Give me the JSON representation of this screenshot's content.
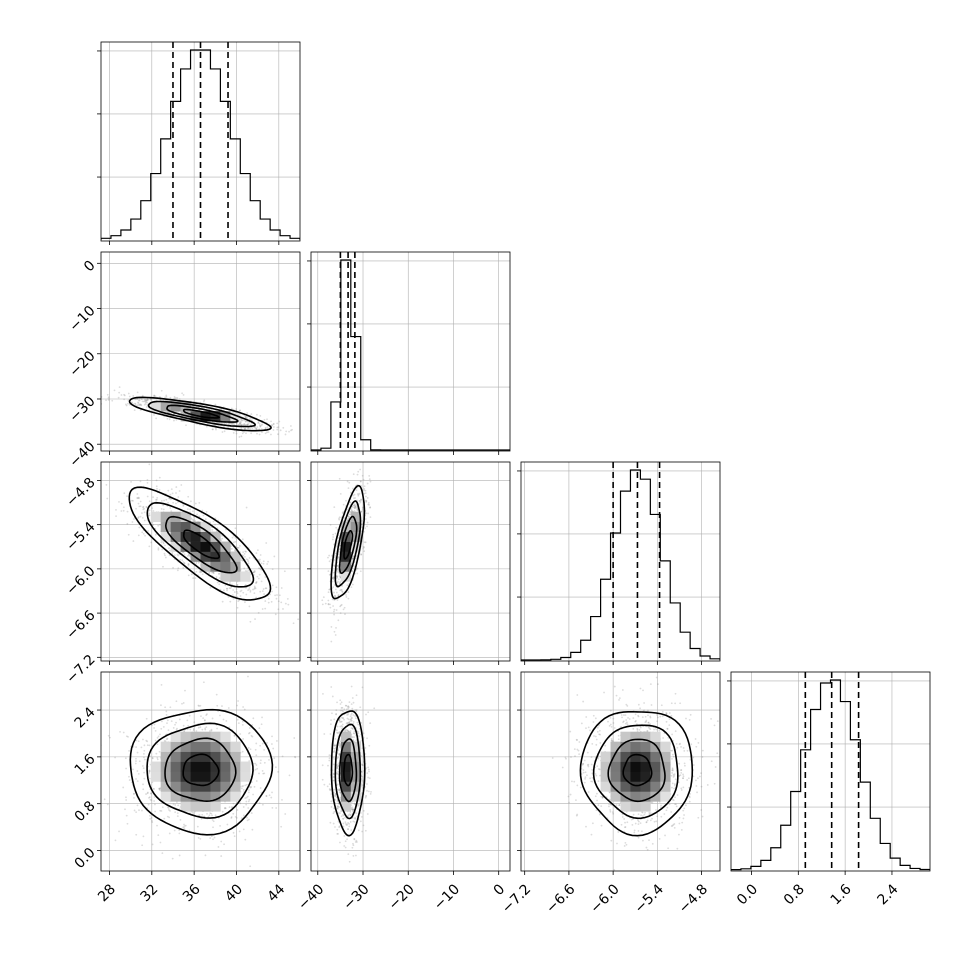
{
  "chart_data": {
    "type": "corner",
    "grid": true,
    "colors": {
      "line": "#000000",
      "grid": "#b0b0b0",
      "points": "#808080",
      "background": "#ffffff"
    },
    "parameters": [
      {
        "index": 0,
        "range": [
          27.2,
          46.0
        ],
        "ticks": [
          28,
          32,
          36,
          40,
          44
        ],
        "tick_labels": [
          "28",
          "32",
          "36",
          "40",
          "44"
        ],
        "mean": 36.6,
        "sigma": 2.9,
        "quantiles": [
          34.0,
          36.6,
          39.2
        ]
      },
      {
        "index": 1,
        "range": [
          -41.5,
          2.5
        ],
        "ticks": [
          -40,
          -30,
          -20,
          -10,
          0
        ],
        "tick_labels": [
          "−40",
          "−30",
          "−20",
          "−10",
          "0"
        ],
        "mean": -33.3,
        "sigma": 1.6,
        "quantiles": [
          -35.0,
          -33.3,
          -31.8
        ]
      },
      {
        "index": 2,
        "range": [
          -7.25,
          -4.55
        ],
        "ticks": [
          -7.2,
          -6.6,
          -6.0,
          -5.4,
          -4.8
        ],
        "tick_labels": [
          "−7.2",
          "−6.6",
          "−6.0",
          "−5.4",
          "−4.8"
        ],
        "mean": -5.67,
        "sigma": 0.33,
        "quantiles": [
          -6.0,
          -5.67,
          -5.37
        ]
      },
      {
        "index": 3,
        "range": [
          -0.35,
          3.05
        ],
        "ticks": [
          0.0,
          0.8,
          1.6,
          2.4
        ],
        "tick_labels": [
          "0.0",
          "0.8",
          "1.6",
          "2.4"
        ],
        "mean": 1.37,
        "sigma": 0.46,
        "quantiles": [
          0.92,
          1.37,
          1.83
        ]
      }
    ],
    "correlations": [
      {
        "pair": [
          1,
          0
        ],
        "rho": -0.8
      },
      {
        "pair": [
          2,
          0
        ],
        "rho": -0.8
      },
      {
        "pair": [
          2,
          1
        ],
        "rho": 0.65
      },
      {
        "pair": [
          3,
          0
        ],
        "rho": 0.0
      },
      {
        "pair": [
          3,
          1
        ],
        "rho": 0.0
      },
      {
        "pair": [
          3,
          2
        ],
        "rho": 0.0
      }
    ],
    "contour_levels_sigma": [
      0.5,
      1.0,
      1.5,
      2.0
    ]
  }
}
